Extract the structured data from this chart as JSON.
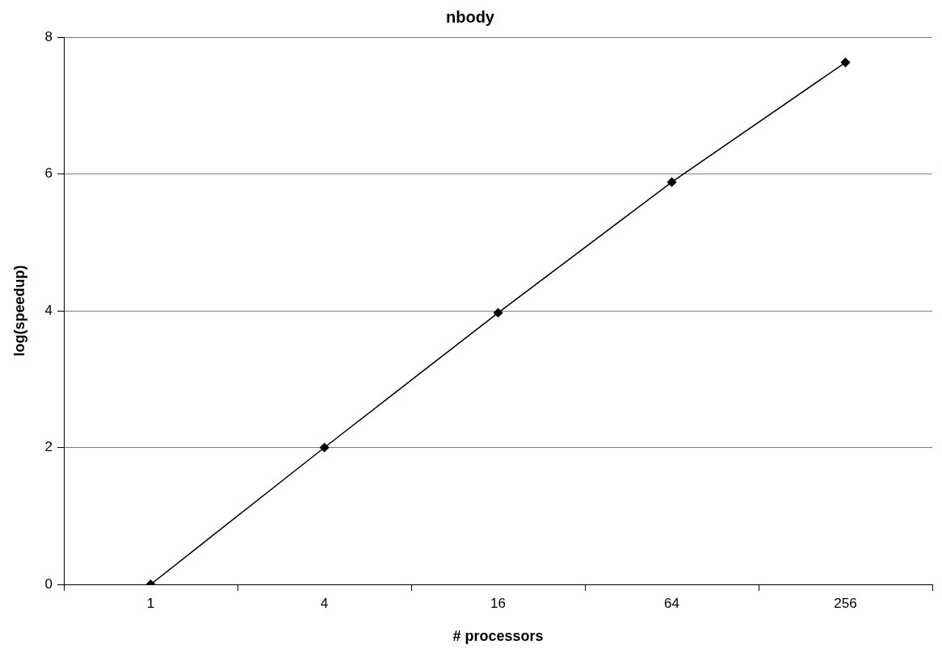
{
  "chart_data": {
    "type": "line",
    "title": "nbody",
    "xlabel": "# processors",
    "ylabel": "log(speedup)",
    "categories": [
      "1",
      "4",
      "16",
      "64",
      "256"
    ],
    "series": [
      {
        "color": "#000000",
        "values": [
          0,
          2,
          3.97,
          5.88,
          7.63
        ]
      }
    ],
    "ylim": [
      0,
      8
    ],
    "yticks": [
      0,
      2,
      4,
      6,
      8
    ],
    "grid": "y",
    "legend": false,
    "marker": "diamond",
    "line_style": "solid"
  }
}
